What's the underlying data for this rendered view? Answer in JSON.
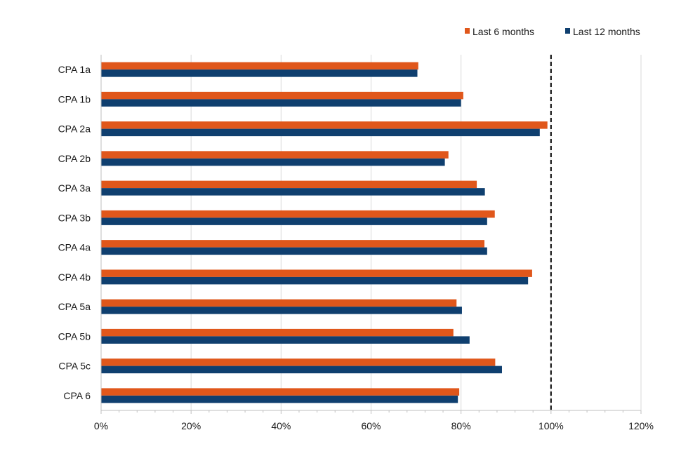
{
  "chart_data": {
    "type": "bar",
    "orientation": "horizontal",
    "categories": [
      "CPA 1a",
      "CPA 1b",
      "CPA 2a",
      "CPA 2b",
      "CPA 3a",
      "CPA 3b",
      "CPA 4a",
      "CPA 4b",
      "CPA 5a",
      "CPA 5b",
      "CPA 5c",
      "CPA 6"
    ],
    "series": [
      {
        "name": "Last 6 months",
        "color": "#e0571b",
        "values": [
          70.5,
          80.5,
          99.2,
          77.2,
          83.5,
          87.5,
          85.2,
          95.8,
          79.0,
          78.3,
          87.6,
          79.6
        ]
      },
      {
        "name": "Last 12 months",
        "color": "#0f3f6f",
        "values": [
          70.3,
          80.0,
          97.5,
          76.4,
          85.3,
          85.8,
          85.8,
          94.9,
          80.2,
          81.9,
          89.1,
          79.3
        ]
      }
    ],
    "xlim": [
      0,
      120
    ],
    "x_ticks": [
      0,
      20,
      40,
      60,
      80,
      100,
      120
    ],
    "x_tick_labels": [
      "0%",
      "20%",
      "40%",
      "60%",
      "80%",
      "100%",
      "120%"
    ],
    "reference_line": {
      "value": 100,
      "style": "dashed"
    },
    "grid": "vertical",
    "legend_position": "top-right",
    "title": "",
    "xlabel": "",
    "ylabel": ""
  }
}
